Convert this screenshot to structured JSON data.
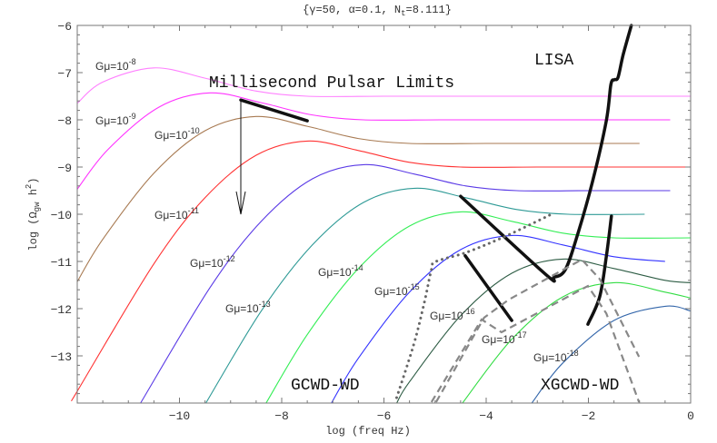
{
  "chart_data": {
    "type": "line",
    "title": "{γ=50, α=0.1, N_t=8.111}",
    "title_parts": {
      "pre": "{γ=50, α=0.1, N",
      "sub": "t",
      "post": "=8.111}"
    },
    "xlabel": "log (freq Hz)",
    "ylabel_parts": {
      "pre": "log (Ω",
      "sub": "gw",
      "mid": " h",
      "sup": "2",
      "post": ")"
    },
    "xlim": [
      -12,
      0
    ],
    "ylim": [
      -14,
      -6
    ],
    "xticks": [
      -10,
      -8,
      -6,
      -4,
      -2,
      0
    ],
    "yticks": [
      -6,
      -7,
      -8,
      -9,
      -10,
      -11,
      -12,
      -13
    ],
    "grid": false,
    "series": [
      {
        "name": "Gμ=10^-8",
        "label": {
          "base": "Gμ=10",
          "exp": "-8"
        },
        "color": "#ff80ff",
        "peak": [
          -10.5,
          -6.9
        ],
        "plateau": -7.5
      },
      {
        "name": "Gμ=10^-9",
        "label": {
          "base": "Gμ=10",
          "exp": "-9"
        },
        "color": "#ff33ff",
        "peak": [
          -9.4,
          -7.43
        ],
        "plateau": -8.0
      },
      {
        "name": "Gμ=10^-10",
        "label": {
          "base": "Gμ=10",
          "exp": "-10"
        },
        "color": "#a87a52",
        "peak": [
          -8.5,
          -7.93
        ],
        "plateau": -8.5
      },
      {
        "name": "Gμ=10^-11",
        "label": {
          "base": "Gμ=10",
          "exp": "-11"
        },
        "color": "#ff3333",
        "peak": [
          -7.5,
          -8.45
        ],
        "plateau": -9.0
      },
      {
        "name": "Gμ=10^-12",
        "label": {
          "base": "Gμ=10",
          "exp": "-12"
        },
        "color": "#5a3ae6",
        "peak": [
          -6.4,
          -8.95
        ],
        "plateau": -9.5
      },
      {
        "name": "Gμ=10^-13",
        "label": {
          "base": "Gμ=10",
          "exp": "-13"
        },
        "color": "#2e9a96",
        "peak": [
          -5.4,
          -9.45
        ],
        "plateau": -10.0
      },
      {
        "name": "Gμ=10^-14",
        "label": {
          "base": "Gμ=10",
          "exp": "-14"
        },
        "color": "#33ee55",
        "peak": [
          -4.5,
          -9.95
        ],
        "plateau": -10.5
      },
      {
        "name": "Gμ=10^-15",
        "label": {
          "base": "Gμ=10",
          "exp": "-15"
        },
        "color": "#3333ff",
        "peak": [
          -3.5,
          -10.45
        ],
        "plateau": -11.0
      },
      {
        "name": "Gμ=10^-16",
        "label": {
          "base": "Gμ=10",
          "exp": "-16"
        },
        "color": "#2d5c44",
        "peak": [
          -2.5,
          -10.95
        ],
        "plateau": -11.5
      },
      {
        "name": "Gμ=10^-17",
        "label": {
          "base": "Gμ=10",
          "exp": "-17"
        },
        "color": "#33dd44",
        "peak": [
          -1.5,
          -11.45
        ],
        "plateau": -12.0
      },
      {
        "name": "Gμ=10^-18",
        "label": {
          "base": "Gμ=10",
          "exp": "-18"
        },
        "color": "#3366aa",
        "peak": [
          -0.5,
          -11.95
        ],
        "plateau": -12.5
      }
    ],
    "bounds": [
      {
        "name": "LISA",
        "style": "bold",
        "points": [
          [
            -4.5,
            -9.62
          ],
          [
            -2.84,
            -11.27
          ],
          [
            -2.67,
            -11.33
          ],
          [
            -2.45,
            -11.17
          ],
          [
            -2.22,
            -10.46
          ],
          [
            -1.92,
            -9.31
          ],
          [
            -1.65,
            -8.02
          ],
          [
            -1.56,
            -7.25
          ],
          [
            -1.49,
            -7.15
          ],
          [
            -1.42,
            -7.1
          ],
          [
            -1.32,
            -6.62
          ],
          [
            -1.16,
            -6.0
          ]
        ]
      },
      {
        "name": "bold-segment-right",
        "style": "bold",
        "points": [
          [
            -1.55,
            -10.04
          ],
          [
            -1.65,
            -10.9
          ],
          [
            -1.78,
            -11.75
          ],
          [
            -2.01,
            -12.33
          ]
        ]
      },
      {
        "name": "bold-segment-mid",
        "style": "bold",
        "points": [
          [
            -4.41,
            -10.88
          ],
          [
            -3.5,
            -12.25
          ]
        ]
      },
      {
        "name": "Millisecond Pulsar Limits",
        "style": "bold",
        "points": [
          [
            -8.8,
            -7.58
          ],
          [
            -7.5,
            -8.02
          ]
        ]
      },
      {
        "name": "pulsar-arrow",
        "style": "arrow",
        "points": [
          [
            -8.8,
            -7.58
          ],
          [
            -8.8,
            -10.0
          ]
        ]
      },
      {
        "name": "dotted-bound",
        "style": "dotted",
        "points": [
          [
            -2.76,
            -10.02
          ],
          [
            -3.61,
            -10.46
          ],
          [
            -4.39,
            -10.81
          ],
          [
            -4.98,
            -11.0
          ],
          [
            -5.07,
            -11.17
          ],
          [
            -5.21,
            -11.87
          ],
          [
            -5.42,
            -12.77
          ],
          [
            -5.78,
            -13.98
          ]
        ]
      },
      {
        "name": "GCWD-WD",
        "style": "dashed",
        "points": [
          [
            -4.98,
            -13.98
          ],
          [
            -4.04,
            -12.19
          ],
          [
            -3.56,
            -11.81
          ],
          [
            -2.13,
            -10.96
          ],
          [
            -1.78,
            -11.37
          ],
          [
            -1.01,
            -13.02
          ]
        ]
      },
      {
        "name": "XGCWD-WD",
        "style": "dashed",
        "points": [
          [
            -5.07,
            -13.98
          ],
          [
            -4.09,
            -12.23
          ],
          [
            -3.7,
            -12.5
          ],
          [
            -2.01,
            -11.52
          ],
          [
            -1.65,
            -12.1
          ],
          [
            -1.01,
            -13.98
          ]
        ]
      }
    ],
    "annotations": {
      "pulsar": "Millisecond Pulsar Limits",
      "lisa": "LISA",
      "gcwd": "GCWD-WD",
      "xgcwd": "XGCWD-WD"
    }
  }
}
